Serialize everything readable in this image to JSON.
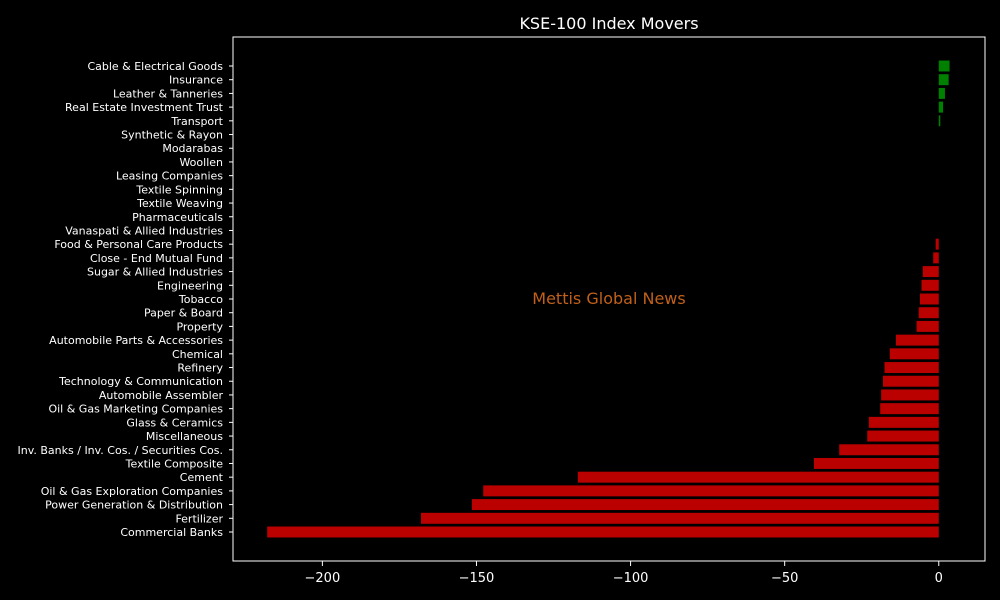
{
  "chart_data": {
    "type": "bar",
    "orientation": "horizontal",
    "title": "KSE-100 Index Movers",
    "xlabel": "",
    "ylabel": "",
    "xlim": [
      -229,
      15
    ],
    "xticks": [
      -200,
      -150,
      -100,
      -50,
      0
    ],
    "xtick_labels": [
      "−200",
      "−150",
      "−100",
      "−50",
      "0"
    ],
    "grid": false,
    "watermark": "Mettis Global News",
    "colors": {
      "background": "#000000",
      "positive": "#008000",
      "negative": "#bb0000",
      "axes": "#ffffff",
      "text": "#ffffff",
      "watermark": "#c0601a"
    },
    "categories": [
      "Cable & Electrical Goods",
      "Insurance",
      "Leather & Tanneries",
      "Real Estate Investment Trust",
      "Transport",
      "Synthetic & Rayon",
      "Modarabas",
      "Woollen",
      "Leasing Companies",
      "Textile Spinning",
      "Textile Weaving",
      "Pharmaceuticals",
      "Vanaspati & Allied Industries",
      "Food & Personal Care Products",
      "Close - End Mutual Fund",
      "Sugar & Allied Industries",
      "Engineering",
      "Tobacco",
      "Paper & Board",
      "Property",
      "Automobile Parts & Accessories",
      "Chemical",
      "Refinery",
      "Technology & Communication",
      "Automobile Assembler",
      "Oil & Gas Marketing Companies",
      "Glass & Ceramics",
      "Miscellaneous",
      "Inv. Banks / Inv. Cos. / Securities Cos.",
      "Textile Composite",
      "Cement",
      "Oil & Gas Exploration Companies",
      "Power Generation & Distribution",
      "Fertilizer",
      "Commercial Banks"
    ],
    "values": [
      3.5,
      3.2,
      2.0,
      1.4,
      0.5,
      0,
      0,
      0,
      0,
      0,
      0,
      0,
      0,
      -1.0,
      -1.8,
      -5.2,
      -5.6,
      -6.1,
      -6.5,
      -7.2,
      -13.9,
      -15.9,
      -17.6,
      -18.1,
      -18.7,
      -19.0,
      -22.7,
      -23.2,
      -32.3,
      -40.5,
      -117.1,
      -147.8,
      -151.5,
      -168.0,
      -217.9
    ]
  }
}
